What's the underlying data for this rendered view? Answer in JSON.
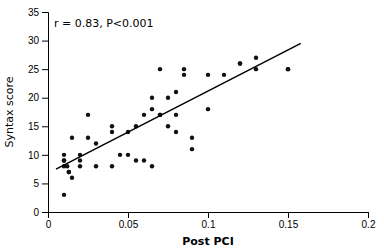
{
  "chart_data": {
    "type": "scatter",
    "xlabel": "Post PCI",
    "ylabel": "Syntax score",
    "annotation": "r = 0.83, P<0.001",
    "xlim": [
      0,
      0.2
    ],
    "ylim": [
      0,
      35
    ],
    "xticks": [
      0,
      0.05,
      0.1,
      0.15,
      0.2
    ],
    "yticks": [
      0,
      5,
      10,
      15,
      20,
      25,
      30,
      35
    ],
    "series": [
      {
        "type": "scatter",
        "color": "#111111",
        "x": [
          0.01,
          0.01,
          0.01,
          0.01,
          0.01,
          0.012,
          0.013,
          0.013,
          0.015,
          0.015,
          0.02,
          0.02,
          0.02,
          0.025,
          0.025,
          0.03,
          0.03,
          0.04,
          0.04,
          0.04,
          0.045,
          0.05,
          0.05,
          0.055,
          0.055,
          0.06,
          0.06,
          0.065,
          0.065,
          0.065,
          0.07,
          0.07,
          0.07,
          0.07,
          0.075,
          0.075,
          0.08,
          0.08,
          0.08,
          0.085,
          0.085,
          0.09,
          0.09,
          0.1,
          0.1,
          0.11,
          0.12,
          0.12,
          0.13,
          0.13,
          0.15,
          0.15
        ],
        "values": [
          8,
          9,
          9,
          10,
          3,
          8,
          7,
          7,
          6,
          13,
          9,
          10,
          8,
          13,
          17,
          12,
          8,
          15,
          14,
          8,
          10,
          14,
          10,
          15,
          9,
          17,
          9,
          20,
          18,
          8,
          25,
          17,
          17,
          17,
          20,
          15,
          21,
          17,
          14,
          25,
          24,
          13,
          11,
          24,
          18,
          24,
          26,
          26,
          27,
          25,
          25,
          25
        ]
      },
      {
        "type": "line",
        "color": "#000000",
        "x": [
          0.005,
          0.158
        ],
        "values": [
          7.5,
          29.5
        ]
      }
    ]
  }
}
